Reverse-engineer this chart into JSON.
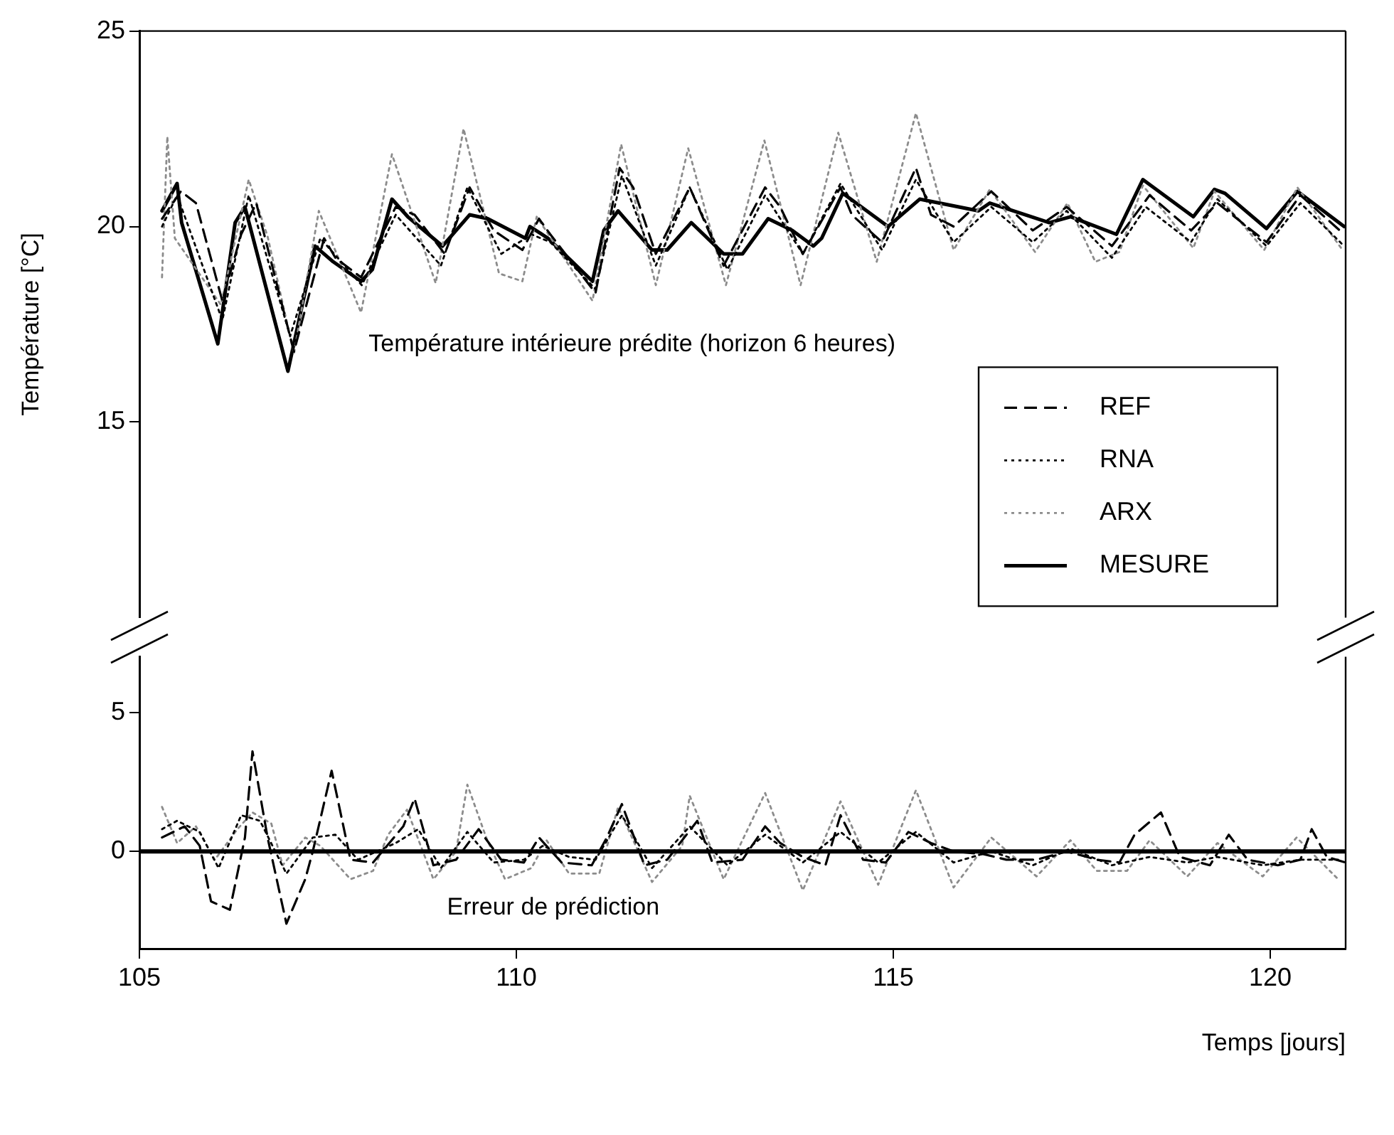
{
  "chart_data": [
    {
      "type": "line",
      "ylabel": "Température [°C]",
      "xlim": [
        105,
        121
      ],
      "ylim": [
        10,
        25
      ],
      "yticks": [
        15,
        20,
        25
      ],
      "tick_labels": "y",
      "legend": "bottom right",
      "marker": "none",
      "annotations": [
        "Température intérieure prédite (horizon 6 heures)"
      ],
      "series": [
        {
          "name": "REF",
          "color": "#000000",
          "line_style": "dashed",
          "x": [
            105.3,
            105.55,
            105.75,
            106.1,
            106.35,
            106.55,
            107.05,
            107.45,
            107.6,
            107.94,
            108.4,
            108.65,
            109.05,
            109.38,
            109.7,
            110.08,
            110.3,
            110.45,
            111.05,
            111.37,
            111.55,
            111.85,
            112.3,
            112.75,
            113.3,
            113.5,
            113.8,
            114.3,
            114.45,
            114.85,
            115.3,
            115.5,
            115.8,
            116.3,
            116.85,
            117.3,
            117.9,
            118.4,
            118.95,
            119.3,
            119.95,
            120.4,
            120.98
          ],
          "values": [
            20.2,
            20.9,
            20.6,
            18.1,
            19.8,
            20.6,
            16.8,
            19.7,
            19.2,
            18.7,
            20.5,
            20.3,
            19.3,
            21.0,
            19.9,
            19.4,
            20.2,
            19.8,
            18.3,
            21.5,
            21.0,
            19.3,
            21.0,
            19.0,
            21.0,
            20.5,
            19.3,
            21.0,
            20.3,
            19.6,
            21.5,
            20.3,
            20.0,
            20.9,
            19.9,
            20.5,
            19.5,
            20.8,
            19.9,
            20.6,
            19.6,
            20.8,
            19.8
          ]
        },
        {
          "name": "RNA",
          "color": "#000000",
          "line_style": "dotted",
          "x": [
            105.3,
            105.5,
            106.1,
            106.45,
            107.0,
            107.4,
            107.95,
            108.4,
            109.0,
            109.35,
            109.8,
            110.2,
            110.45,
            111.05,
            111.4,
            111.85,
            112.3,
            112.8,
            113.3,
            113.8,
            114.3,
            114.85,
            115.3,
            115.8,
            116.3,
            116.85,
            117.3,
            117.9,
            118.35,
            118.95,
            119.3,
            119.95,
            120.4,
            120.98
          ],
          "values": [
            20.0,
            20.8,
            17.6,
            20.8,
            17.2,
            19.7,
            18.5,
            20.3,
            19.0,
            21.0,
            19.3,
            19.8,
            19.6,
            18.4,
            21.3,
            19.0,
            21.0,
            18.9,
            20.8,
            19.3,
            21.1,
            19.4,
            21.2,
            19.6,
            20.5,
            19.6,
            20.4,
            19.2,
            20.5,
            19.6,
            20.7,
            19.5,
            20.6,
            19.5
          ]
        },
        {
          "name": "ARX",
          "color": "#8c8c8c",
          "line_style": "dotted",
          "x": [
            105.3,
            105.37,
            105.47,
            106.08,
            106.45,
            106.7,
            107.05,
            107.38,
            107.94,
            108.35,
            108.93,
            109.3,
            109.77,
            110.08,
            110.27,
            111.01,
            111.39,
            111.85,
            112.28,
            112.78,
            113.29,
            113.77,
            114.27,
            114.78,
            115.3,
            115.8,
            116.28,
            116.88,
            117.31,
            117.68,
            118.0,
            118.31,
            118.98,
            119.26,
            119.92,
            120.36,
            120.94
          ],
          "values": [
            18.7,
            22.3,
            19.7,
            18.0,
            21.2,
            19.75,
            16.75,
            20.4,
            17.8,
            21.85,
            18.55,
            22.5,
            18.8,
            18.6,
            20.25,
            18.1,
            22.1,
            18.5,
            22.0,
            18.5,
            22.2,
            18.5,
            22.4,
            19.1,
            22.9,
            19.4,
            20.95,
            19.35,
            20.6,
            19.1,
            19.35,
            21.05,
            19.45,
            20.9,
            19.4,
            21.0,
            19.45
          ]
        },
        {
          "name": "MESURE",
          "color": "#000000",
          "line_style": "solid",
          "x": [
            105.3,
            105.5,
            105.56,
            106.04,
            106.27,
            106.4,
            106.97,
            107.33,
            107.57,
            107.94,
            108.09,
            108.35,
            108.56,
            109.02,
            109.38,
            109.62,
            110.12,
            110.18,
            110.42,
            111.01,
            111.16,
            111.35,
            111.8,
            112.0,
            112.32,
            112.75,
            113.0,
            113.34,
            113.66,
            113.94,
            114.05,
            114.33,
            114.93,
            115.35,
            116.13,
            116.28,
            117.07,
            117.35,
            117.96,
            118.31,
            118.98,
            119.26,
            119.4,
            119.95,
            120.36,
            120.98
          ],
          "values": [
            20.4,
            21.1,
            20.1,
            17.0,
            20.1,
            20.5,
            16.3,
            19.5,
            19.1,
            18.6,
            18.9,
            20.7,
            20.25,
            19.5,
            20.3,
            20.2,
            19.7,
            20.0,
            19.7,
            18.6,
            19.9,
            20.4,
            19.4,
            19.4,
            20.1,
            19.3,
            19.3,
            20.2,
            19.9,
            19.5,
            19.7,
            20.85,
            20.0,
            20.7,
            20.4,
            20.6,
            20.1,
            20.25,
            19.8,
            21.2,
            20.25,
            20.95,
            20.85,
            19.95,
            20.9,
            20.0
          ]
        }
      ]
    },
    {
      "type": "line",
      "xlabel": "Temps [jours]",
      "xlim": [
        105,
        121
      ],
      "xticks": [
        105,
        110,
        115,
        120
      ],
      "ylim": [
        -3.5,
        7
      ],
      "yticks": [
        0,
        5
      ],
      "marker": "none",
      "annotations": [
        "Erreur de prédiction"
      ],
      "ref_lines": [
        {
          "axis": "y",
          "value": 0,
          "color": "#000000"
        }
      ],
      "series": [
        {
          "color": "#000000",
          "line_style": "dashed",
          "x": [
            105.3,
            105.6,
            105.8,
            105.95,
            106.2,
            106.4,
            106.5,
            106.7,
            106.95,
            107.2,
            107.3,
            107.55,
            107.8,
            108.1,
            108.5,
            108.65,
            108.9,
            109.2,
            109.5,
            109.8,
            110.1,
            110.3,
            110.6,
            111.0,
            111.2,
            111.4,
            111.7,
            112.0,
            112.4,
            112.6,
            113.0,
            113.3,
            113.5,
            113.8,
            114.1,
            114.3,
            114.6,
            114.9,
            115.2,
            115.5,
            115.8,
            116.2,
            116.5,
            116.9,
            117.3,
            117.7,
            118.0,
            118.2,
            118.55,
            118.8,
            119.2,
            119.45,
            119.7,
            120.1,
            120.4,
            120.55,
            120.75,
            121.0
          ],
          "values": [
            0.5,
            0.9,
            0.2,
            -1.8,
            -2.1,
            0.5,
            3.6,
            0.5,
            -2.6,
            -1.0,
            0.0,
            2.9,
            -0.3,
            -0.4,
            0.9,
            1.9,
            -0.5,
            -0.3,
            0.8,
            -0.3,
            -0.4,
            0.5,
            -0.4,
            -0.5,
            0.5,
            1.7,
            -0.5,
            -0.3,
            1.1,
            -0.4,
            -0.3,
            0.9,
            0.3,
            -0.2,
            -0.5,
            1.3,
            -0.3,
            -0.4,
            0.7,
            0.3,
            0.0,
            -0.1,
            -0.3,
            -0.3,
            0.0,
            -0.3,
            -0.4,
            0.6,
            1.4,
            -0.2,
            -0.5,
            0.6,
            -0.3,
            -0.5,
            -0.3,
            0.8,
            -0.2,
            -0.4
          ]
        },
        {
          "color": "#000000",
          "line_style": "dotted",
          "x": [
            105.3,
            105.5,
            105.8,
            106.05,
            106.35,
            106.6,
            106.95,
            107.3,
            107.6,
            107.9,
            108.4,
            108.7,
            109.0,
            109.35,
            109.7,
            110.1,
            110.35,
            110.7,
            111.05,
            111.4,
            111.8,
            112.3,
            112.8,
            113.3,
            113.8,
            114.3,
            114.8,
            115.3,
            115.8,
            116.3,
            116.85,
            117.35,
            117.9,
            118.4,
            118.9,
            119.3,
            119.9,
            120.4,
            120.9
          ],
          "values": [
            0.8,
            1.1,
            0.7,
            -0.6,
            1.3,
            1.1,
            -0.8,
            0.5,
            0.6,
            -0.3,
            0.3,
            0.8,
            -0.6,
            0.7,
            -0.4,
            -0.3,
            0.2,
            -0.2,
            -0.3,
            1.3,
            -0.6,
            0.9,
            -0.5,
            0.6,
            -0.4,
            0.7,
            -0.4,
            0.7,
            -0.4,
            0.0,
            -0.5,
            0.1,
            -0.5,
            -0.2,
            -0.4,
            -0.2,
            -0.5,
            -0.3,
            -0.3
          ]
        },
        {
          "color": "#8c8c8c",
          "line_style": "dotted",
          "x": [
            105.3,
            105.5,
            105.75,
            106.0,
            106.3,
            106.5,
            106.75,
            106.9,
            107.2,
            107.4,
            107.8,
            108.1,
            108.3,
            108.55,
            108.9,
            109.2,
            109.35,
            109.6,
            109.85,
            110.2,
            110.4,
            110.7,
            111.1,
            111.35,
            111.8,
            112.2,
            112.3,
            112.75,
            113.3,
            113.8,
            114.3,
            114.8,
            115.3,
            115.8,
            116.3,
            116.9,
            117.35,
            117.7,
            118.1,
            118.4,
            118.9,
            119.3,
            119.9,
            120.35,
            120.9
          ],
          "values": [
            1.6,
            0.3,
            0.9,
            -0.3,
            0.8,
            1.4,
            1.0,
            -0.5,
            0.5,
            0.2,
            -1.0,
            -0.7,
            0.6,
            1.5,
            -1.0,
            0.0,
            2.4,
            0.5,
            -1.0,
            -0.6,
            0.4,
            -0.8,
            -0.8,
            1.6,
            -1.1,
            0.2,
            2.0,
            -1.0,
            2.1,
            -1.4,
            1.8,
            -1.2,
            2.2,
            -1.3,
            0.5,
            -0.9,
            0.4,
            -0.7,
            -0.7,
            0.4,
            -0.9,
            0.3,
            -0.9,
            0.5,
            -1.0
          ]
        }
      ]
    }
  ]
}
